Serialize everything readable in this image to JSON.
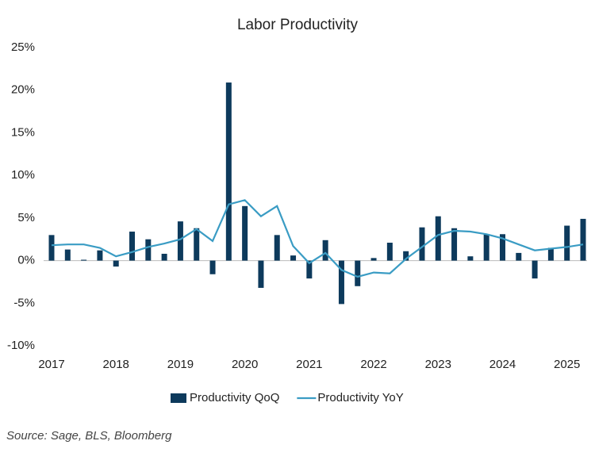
{
  "chart_data": {
    "type": "bar",
    "title": "Labor Productivity",
    "x": [
      2017,
      2017.25,
      2017.5,
      2017.75,
      2018,
      2018.25,
      2018.5,
      2018.75,
      2019,
      2019.25,
      2019.5,
      2019.75,
      2020,
      2020.25,
      2020.5,
      2020.75,
      2021,
      2021.25,
      2021.5,
      2021.75,
      2022,
      2022.25,
      2022.5,
      2022.75,
      2023,
      2023.25,
      2023.5,
      2023.75,
      2024,
      2024.25,
      2024.5,
      2024.75,
      2025,
      2025.25
    ],
    "series": [
      {
        "name": "Productivity QoQ",
        "type": "bar",
        "color": "#0d3a5c",
        "values": [
          3.0,
          1.3,
          0.1,
          1.2,
          -0.7,
          3.4,
          2.5,
          0.8,
          4.6,
          3.8,
          -1.6,
          20.9,
          6.4,
          -3.2,
          3.0,
          0.6,
          -2.1,
          2.4,
          -5.1,
          -3.0,
          0.3,
          2.1,
          1.1,
          3.9,
          5.2,
          3.8,
          0.5,
          3.1,
          3.1,
          0.9,
          -2.1,
          1.5,
          4.1,
          4.9
        ]
      },
      {
        "name": "Productivity YoY",
        "type": "line",
        "color": "#3a9cc4",
        "values": [
          1.8,
          1.9,
          1.9,
          1.5,
          0.5,
          1.0,
          1.6,
          2.0,
          2.5,
          3.7,
          2.3,
          6.6,
          7.1,
          5.2,
          6.4,
          1.7,
          -0.3,
          0.9,
          -1.1,
          -1.9,
          -1.4,
          -1.5,
          0.2,
          1.6,
          3.0,
          3.5,
          3.4,
          3.1,
          2.6,
          1.9,
          1.2,
          1.4,
          1.6,
          1.9
        ]
      }
    ],
    "xlim": [
      2017,
      2025.25
    ],
    "xticks": [
      2017,
      2018,
      2019,
      2020,
      2021,
      2022,
      2023,
      2024,
      2025
    ],
    "ylim": [
      -10,
      25
    ],
    "yticks": [
      {
        "value": -10,
        "label": "-10%"
      },
      {
        "value": -5,
        "label": "-5%"
      },
      {
        "value": 0,
        "label": "0%"
      },
      {
        "value": 5,
        "label": "5%"
      },
      {
        "value": 10,
        "label": "10%"
      },
      {
        "value": 15,
        "label": "15%"
      },
      {
        "value": 20,
        "label": "20%"
      },
      {
        "value": 25,
        "label": "25%"
      }
    ],
    "grid": false,
    "legend": "bottom",
    "source": "Source: Sage, BLS, Bloomberg"
  }
}
